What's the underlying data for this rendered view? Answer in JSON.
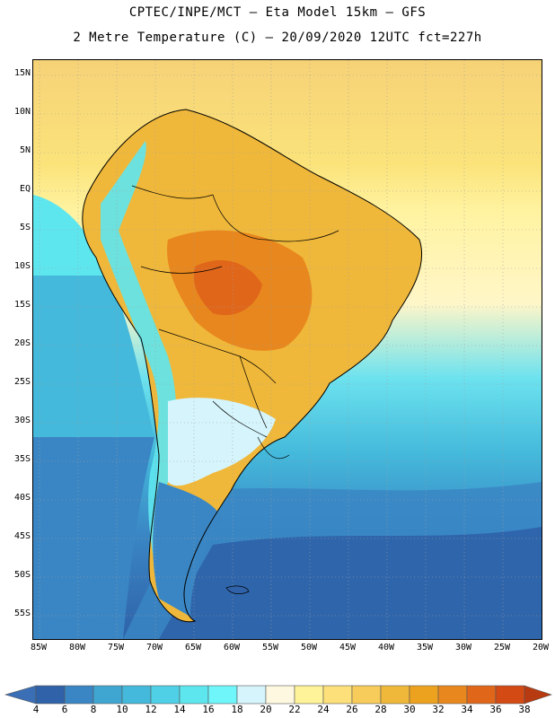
{
  "title_line1": "CPTEC/INPE/MCT –  Eta Model 15km – GFS",
  "title_line2": "2 Metre Temperature (C) – 20/09/2020 12UTC fct=227h",
  "lat_labels": [
    "15N",
    "10N",
    "5N",
    "EQ",
    "5S",
    "10S",
    "15S",
    "20S",
    "25S",
    "30S",
    "35S",
    "40S",
    "45S",
    "50S",
    "55S"
  ],
  "lon_labels": [
    "85W",
    "80W",
    "75W",
    "70W",
    "65W",
    "60W",
    "55W",
    "50W",
    "45W",
    "40W",
    "35W",
    "30W",
    "25W",
    "20W"
  ],
  "colorbar": {
    "values": [
      "4",
      "6",
      "8",
      "10",
      "12",
      "14",
      "16",
      "18",
      "20",
      "22",
      "24",
      "26",
      "28",
      "30",
      "32",
      "34",
      "36",
      "38"
    ],
    "colors": [
      "#3a6fb5",
      "#2f62a8",
      "#3a86c4",
      "#3fa6d2",
      "#44b9db",
      "#4fd0e6",
      "#5ee6ef",
      "#6ff6fb",
      "#d5f4fb",
      "#fff8e0",
      "#fff39a",
      "#fde07a",
      "#f7cc5a",
      "#f0b83a",
      "#eda21f",
      "#e8871e",
      "#e0661a",
      "#d44a14",
      "#b83a10"
    ]
  }
}
